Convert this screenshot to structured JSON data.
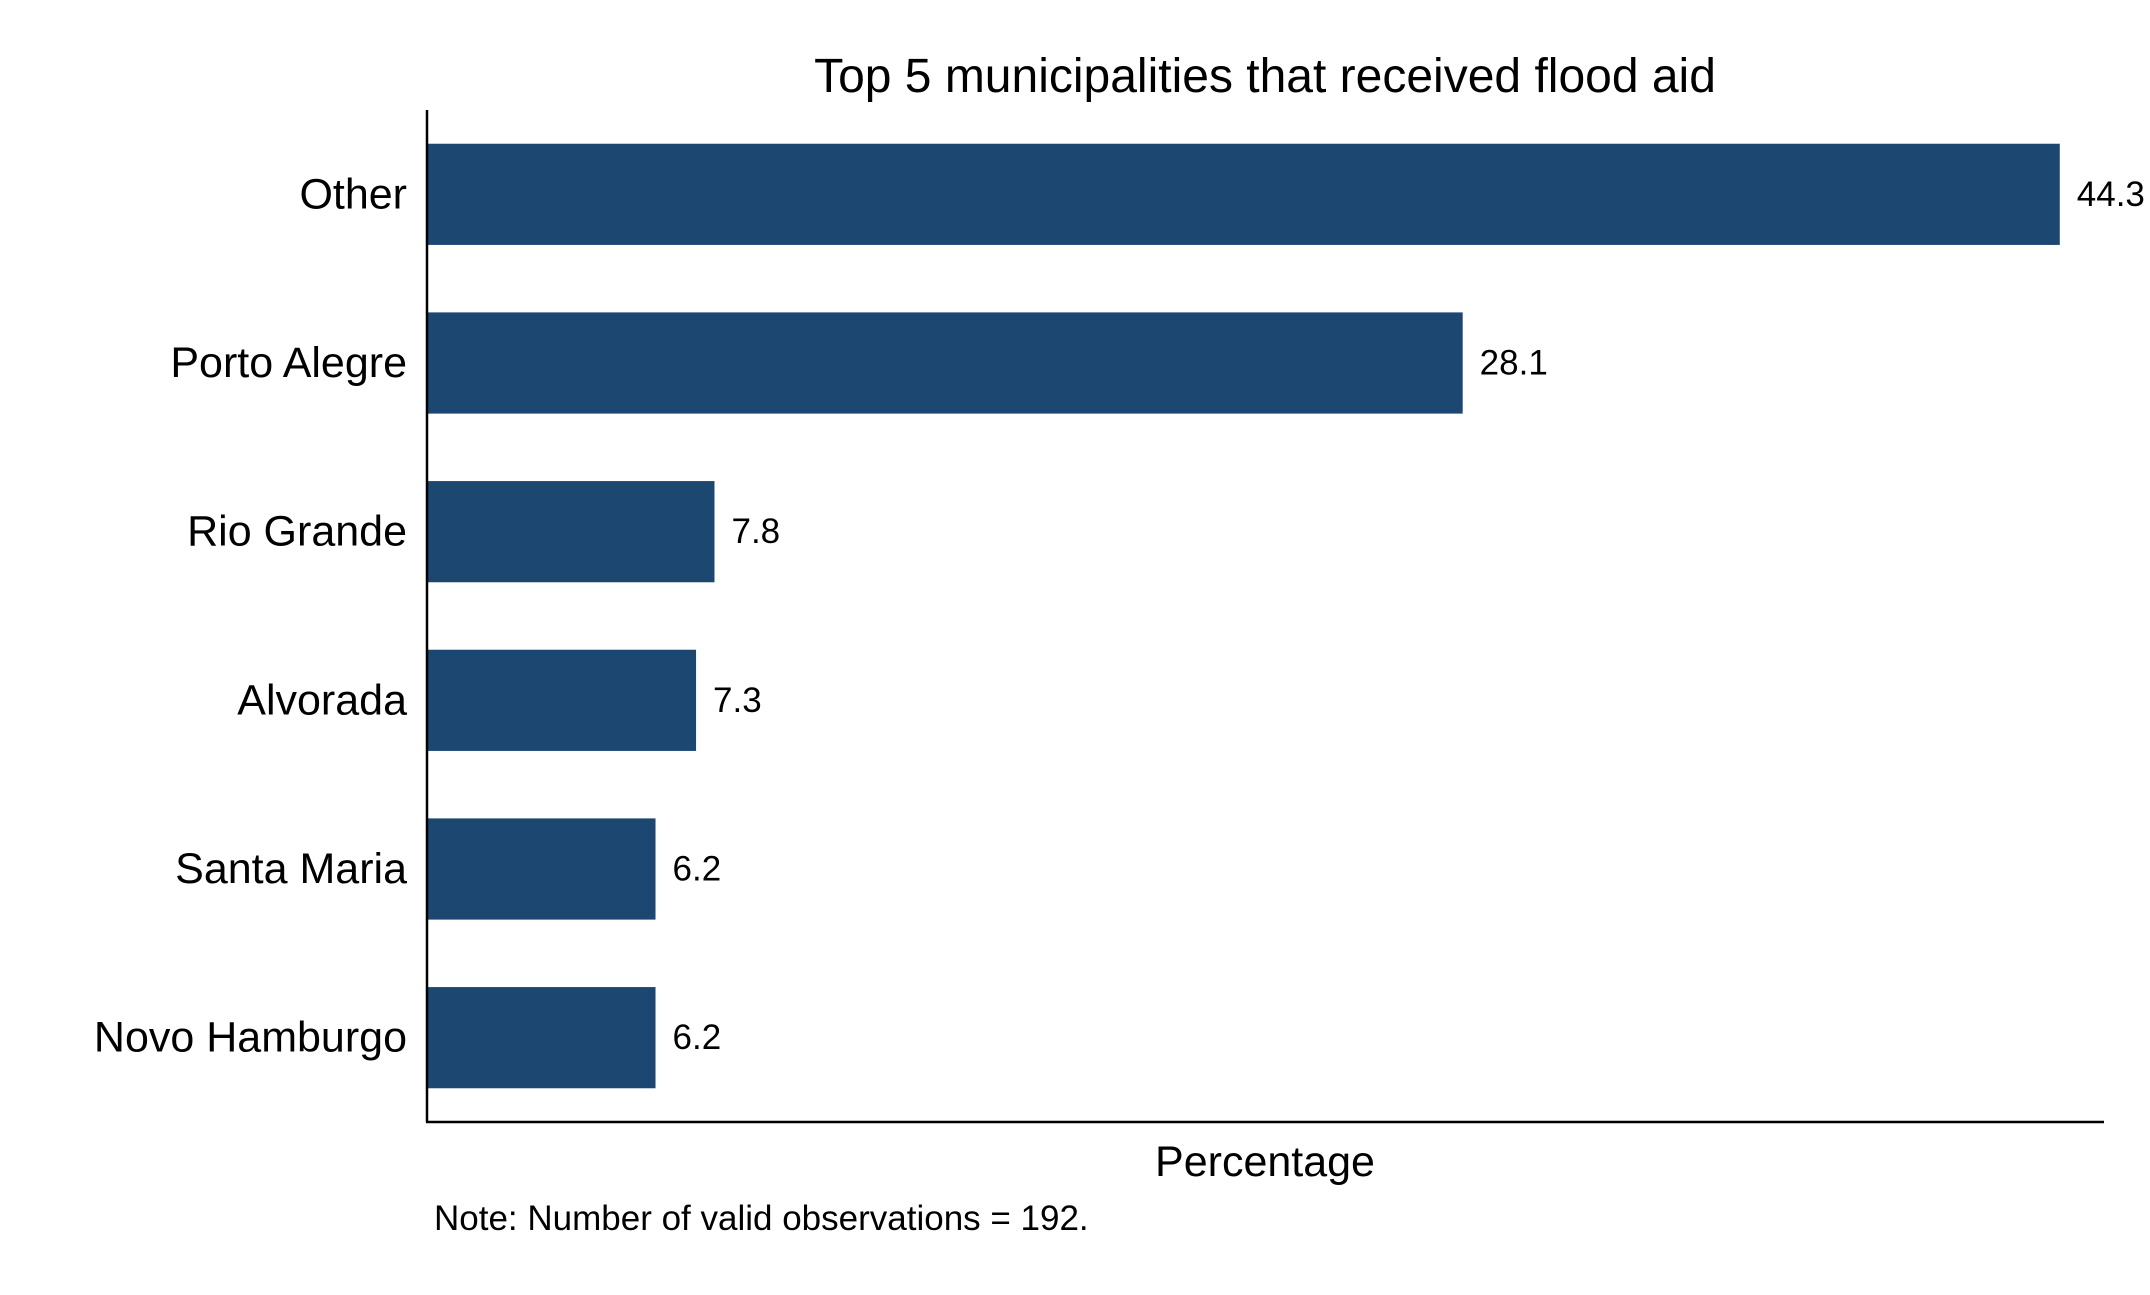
{
  "chart_data": {
    "type": "bar",
    "orientation": "horizontal",
    "title": "Top 5 municipalities that received flood aid",
    "categories": [
      "Other",
      "Porto Alegre",
      "Rio Grande",
      "Alvorada",
      "Santa Maria",
      "Novo Hamburgo"
    ],
    "values": [
      44.3,
      28.1,
      7.8,
      7.3,
      6.2,
      6.2
    ],
    "value_labels": [
      "44.3",
      "28.1",
      "7.8",
      "7.3",
      "6.2",
      "6.2"
    ],
    "xlabel": "Percentage",
    "ylabel": "",
    "xlim": [
      0,
      45.5
    ],
    "grid": false,
    "bar_color": "#1b4771",
    "note": "Note: Number of valid observations = 192."
  }
}
